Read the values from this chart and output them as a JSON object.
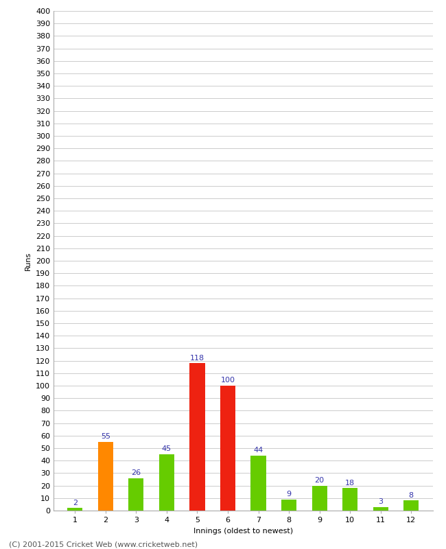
{
  "title": "",
  "xlabel": "Innings (oldest to newest)",
  "ylabel": "Runs",
  "footer": "(C) 2001-2015 Cricket Web (www.cricketweb.net)",
  "categories": [
    1,
    2,
    3,
    4,
    5,
    6,
    7,
    8,
    9,
    10,
    11,
    12
  ],
  "values": [
    2,
    55,
    26,
    45,
    118,
    100,
    44,
    9,
    20,
    18,
    3,
    8
  ],
  "bar_colors": [
    "#66cc00",
    "#ff8800",
    "#66cc00",
    "#66cc00",
    "#ee2211",
    "#ee2211",
    "#66cc00",
    "#66cc00",
    "#66cc00",
    "#66cc00",
    "#66cc00",
    "#66cc00"
  ],
  "label_color": "#3333aa",
  "ylim": [
    0,
    400
  ],
  "ytick_step": 10,
  "background_color": "#ffffff",
  "grid_color": "#cccccc",
  "axis_label_fontsize": 8,
  "tick_fontsize": 8,
  "bar_label_fontsize": 8,
  "footer_fontsize": 8,
  "bar_width": 0.5
}
